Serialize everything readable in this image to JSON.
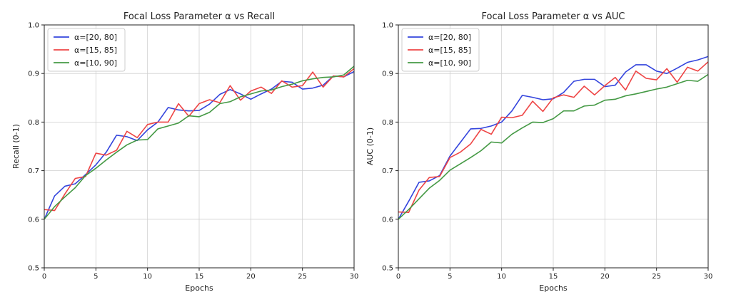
{
  "chart_data": [
    {
      "type": "line",
      "title": "Focal Loss Parameter α vs Recall",
      "xlabel": "Epochs",
      "ylabel": "Recall (0-1)",
      "xlim": [
        0,
        30
      ],
      "ylim": [
        0.5,
        1.0
      ],
      "xticks": [
        0,
        5,
        10,
        15,
        20,
        25,
        30
      ],
      "yticks": [
        0.5,
        0.6,
        0.7,
        0.8,
        0.9,
        1.0
      ],
      "grid": true,
      "legend_position": "top-left",
      "x": [
        0,
        1,
        2,
        3,
        4,
        5,
        6,
        7,
        8,
        9,
        10,
        11,
        12,
        13,
        14,
        15,
        16,
        17,
        18,
        19,
        20,
        21,
        22,
        23,
        24,
        25,
        26,
        27,
        28,
        29,
        30
      ],
      "series": [
        {
          "name": "α=[20, 80]",
          "color": "#3344dd",
          "values": [
            0.6,
            0.648,
            0.668,
            0.673,
            0.692,
            0.712,
            0.738,
            0.773,
            0.77,
            0.762,
            0.784,
            0.8,
            0.83,
            0.825,
            0.823,
            0.824,
            0.837,
            0.857,
            0.867,
            0.858,
            0.847,
            0.858,
            0.868,
            0.884,
            0.882,
            0.868,
            0.87,
            0.876,
            0.895,
            0.893,
            0.904
          ]
        },
        {
          "name": "α=[15, 85]",
          "color": "#ee4444",
          "values": [
            0.62,
            0.618,
            0.652,
            0.684,
            0.688,
            0.736,
            0.732,
            0.742,
            0.781,
            0.768,
            0.795,
            0.8,
            0.8,
            0.838,
            0.812,
            0.838,
            0.846,
            0.84,
            0.875,
            0.845,
            0.864,
            0.872,
            0.859,
            0.885,
            0.872,
            0.875,
            0.903,
            0.872,
            0.895,
            0.893,
            0.91
          ]
        },
        {
          "name": "α=[10, 90]",
          "color": "#449944",
          "values": [
            0.6,
            0.626,
            0.646,
            0.665,
            0.69,
            0.705,
            0.722,
            0.738,
            0.753,
            0.763,
            0.764,
            0.786,
            0.792,
            0.798,
            0.813,
            0.811,
            0.82,
            0.838,
            0.842,
            0.852,
            0.858,
            0.864,
            0.866,
            0.873,
            0.878,
            0.885,
            0.889,
            0.892,
            0.893,
            0.897,
            0.915
          ]
        }
      ]
    },
    {
      "type": "line",
      "title": "Focal Loss Parameter α vs AUC",
      "xlabel": "Epochs",
      "ylabel": "AUC (0-1)",
      "xlim": [
        0,
        30
      ],
      "ylim": [
        0.5,
        1.0
      ],
      "xticks": [
        0,
        5,
        10,
        15,
        20,
        25,
        30
      ],
      "yticks": [
        0.5,
        0.6,
        0.7,
        0.8,
        0.9,
        1.0
      ],
      "grid": true,
      "legend_position": "top-left",
      "x": [
        0,
        1,
        2,
        3,
        4,
        5,
        6,
        7,
        8,
        9,
        10,
        11,
        12,
        13,
        14,
        15,
        16,
        17,
        18,
        19,
        20,
        21,
        22,
        23,
        24,
        25,
        26,
        27,
        28,
        29,
        30
      ],
      "series": [
        {
          "name": "α=[20, 80]",
          "color": "#3344dd",
          "values": [
            0.6,
            0.637,
            0.676,
            0.679,
            0.69,
            0.73,
            0.758,
            0.786,
            0.787,
            0.792,
            0.8,
            0.823,
            0.855,
            0.851,
            0.846,
            0.848,
            0.861,
            0.884,
            0.888,
            0.888,
            0.873,
            0.876,
            0.903,
            0.918,
            0.918,
            0.905,
            0.9,
            0.911,
            0.923,
            0.928,
            0.935
          ]
        },
        {
          "name": "α=[15, 85]",
          "color": "#ee4444",
          "values": [
            0.615,
            0.614,
            0.66,
            0.686,
            0.688,
            0.727,
            0.738,
            0.755,
            0.785,
            0.775,
            0.81,
            0.809,
            0.814,
            0.843,
            0.822,
            0.85,
            0.856,
            0.851,
            0.874,
            0.856,
            0.875,
            0.892,
            0.866,
            0.905,
            0.89,
            0.887,
            0.91,
            0.882,
            0.913,
            0.905,
            0.924
          ]
        },
        {
          "name": "α=[10, 90]",
          "color": "#449944",
          "values": [
            0.6,
            0.62,
            0.642,
            0.664,
            0.68,
            0.701,
            0.714,
            0.727,
            0.741,
            0.759,
            0.757,
            0.775,
            0.788,
            0.8,
            0.799,
            0.807,
            0.823,
            0.823,
            0.833,
            0.835,
            0.845,
            0.847,
            0.854,
            0.858,
            0.863,
            0.868,
            0.872,
            0.879,
            0.886,
            0.884,
            0.898
          ]
        }
      ]
    }
  ]
}
